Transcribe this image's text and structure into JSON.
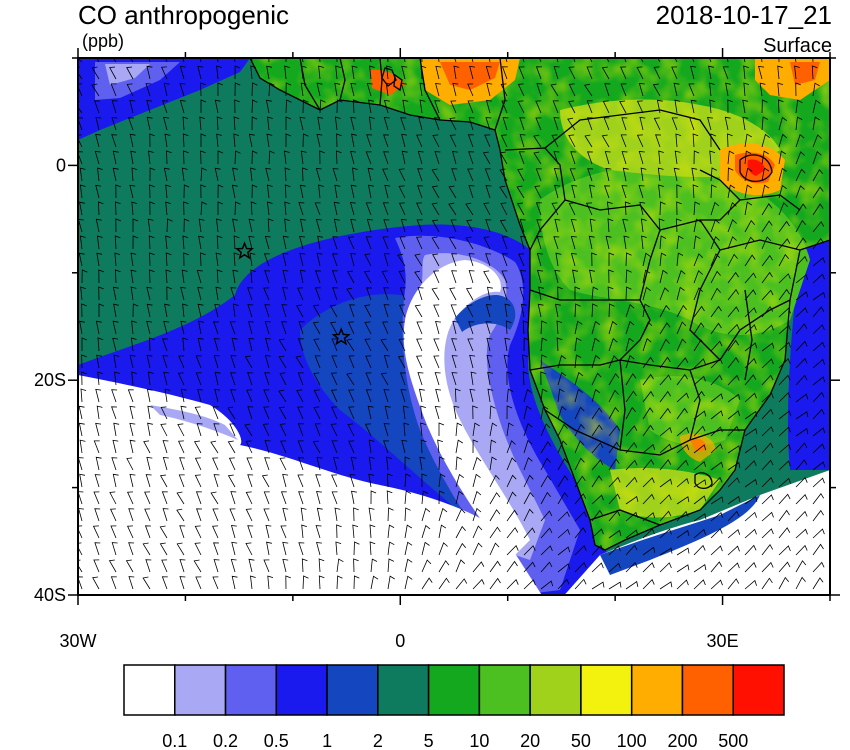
{
  "header": {
    "title": "CO anthropogenic",
    "units": "(ppb)",
    "datetime": "2018-10-17_21",
    "level": "Surface"
  },
  "axes": {
    "y_ticks": [
      {
        "value": 0,
        "label": "0"
      },
      {
        "value": -20,
        "label": "20S"
      },
      {
        "value": -40,
        "label": "40S"
      }
    ],
    "x_ticks": [
      {
        "value": -30,
        "label": "30W"
      },
      {
        "value": 0,
        "label": "0"
      },
      {
        "value": 30,
        "label": "30E"
      }
    ],
    "lon_range": [
      -30,
      40
    ],
    "lat_range": [
      -40,
      10
    ]
  },
  "colorbar": {
    "colors": [
      "#ffffff",
      "#a8a8f5",
      "#6060f0",
      "#1a1aee",
      "#1446c0",
      "#0e7b5e",
      "#14a81e",
      "#4cc020",
      "#a0d21c",
      "#f2f20e",
      "#ffae00",
      "#ff6000",
      "#ff1000"
    ],
    "labels": [
      "0.1",
      "0.2",
      "0.5",
      "1",
      "2",
      "5",
      "10",
      "20",
      "50",
      "100",
      "200",
      "500"
    ]
  },
  "markers": [
    {
      "name": "star-marker",
      "lon": -14.5,
      "lat": -8
    },
    {
      "name": "star-marker",
      "lon": -5.5,
      "lat": -16
    }
  ]
}
